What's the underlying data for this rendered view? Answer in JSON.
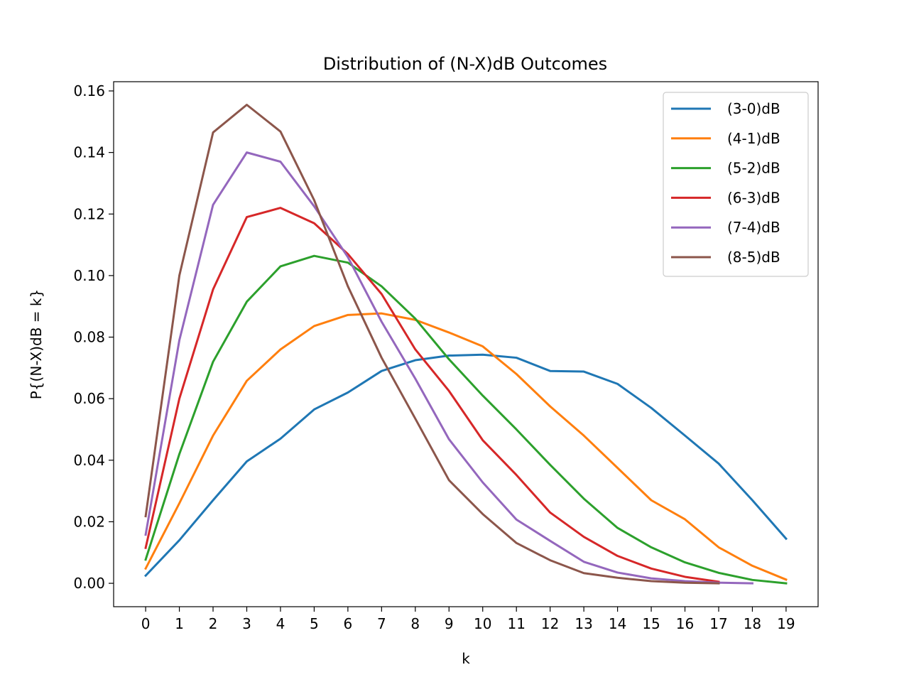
{
  "chart_data": {
    "type": "line",
    "title": "Distribution of (N-X)dB Outcomes",
    "xlabel": "k",
    "ylabel": "P{(N-X)dB = k}",
    "x_ticks": [
      0,
      1,
      2,
      3,
      4,
      5,
      6,
      7,
      8,
      9,
      10,
      11,
      12,
      13,
      14,
      15,
      16,
      17,
      18,
      19
    ],
    "y_ticks": [
      "0.00",
      "0.02",
      "0.04",
      "0.06",
      "0.08",
      "0.10",
      "0.12",
      "0.14",
      "0.16"
    ],
    "xlim": [
      -0.95,
      19.95
    ],
    "ylim": [
      -0.0076,
      0.163
    ],
    "grid": false,
    "legend_position": "top-right",
    "series": [
      {
        "name": "(3-0)dB",
        "color": "#1f77b4",
        "values": [
          0.0025,
          0.014,
          0.027,
          0.0396,
          0.047,
          0.0565,
          0.062,
          0.069,
          0.0725,
          0.074,
          0.0743,
          0.0733,
          0.069,
          0.0688,
          0.0648,
          0.057,
          0.048,
          0.0389,
          0.027,
          0.0145
        ]
      },
      {
        "name": "(4-1)dB",
        "color": "#ff7f0e",
        "values": [
          0.0048,
          0.026,
          0.048,
          0.0658,
          0.076,
          0.0836,
          0.0872,
          0.0877,
          0.0856,
          0.0815,
          0.077,
          0.068,
          0.0575,
          0.048,
          0.0375,
          0.027,
          0.0208,
          0.0117,
          0.0057,
          0.0012
        ]
      },
      {
        "name": "(5-2)dB",
        "color": "#2ca02c",
        "values": [
          0.0077,
          0.042,
          0.072,
          0.0915,
          0.103,
          0.1064,
          0.1042,
          0.0965,
          0.086,
          0.0728,
          0.061,
          0.05,
          0.0385,
          0.0275,
          0.018,
          0.0117,
          0.0068,
          0.0034,
          0.0011,
          0.0
        ]
      },
      {
        "name": "(6-3)dB",
        "color": "#d62728",
        "values": [
          0.0115,
          0.06,
          0.0955,
          0.119,
          0.122,
          0.117,
          0.107,
          0.094,
          0.076,
          0.0625,
          0.0465,
          0.0352,
          0.023,
          0.0151,
          0.0089,
          0.0048,
          0.0021,
          0.0005
        ]
      },
      {
        "name": "(7-4)dB",
        "color": "#9467bd",
        "values": [
          0.0158,
          0.079,
          0.123,
          0.14,
          0.137,
          0.1225,
          0.106,
          0.085,
          0.0665,
          0.0468,
          0.0328,
          0.0207,
          0.0138,
          0.007,
          0.0035,
          0.0016,
          0.0007,
          0.0002,
          0.0
        ]
      },
      {
        "name": "(8-5)dB",
        "color": "#8c564b",
        "values": [
          0.0218,
          0.1,
          0.1465,
          0.1555,
          0.1468,
          0.1245,
          0.0965,
          0.0733,
          0.0535,
          0.0335,
          0.0225,
          0.0131,
          0.0075,
          0.0033,
          0.0018,
          0.0007,
          0.0002,
          0.0
        ]
      }
    ]
  }
}
